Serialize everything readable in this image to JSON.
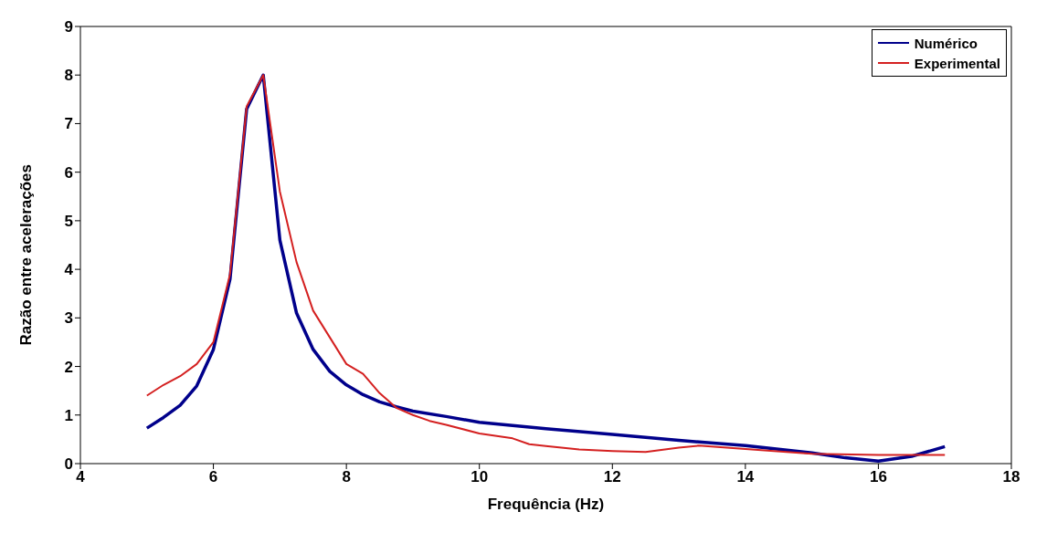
{
  "chart_data": {
    "type": "line",
    "xlabel": "Frequência (Hz)",
    "ylabel": "Razão entre acelerações",
    "xlim": [
      4,
      18
    ],
    "xticks": [
      4,
      6,
      8,
      10,
      12,
      14,
      16,
      18
    ],
    "ylim": [
      0,
      9
    ],
    "yticks": [
      0,
      1,
      2,
      3,
      4,
      5,
      6,
      7,
      8,
      9
    ],
    "grid": false,
    "legend": "top right",
    "marker": "none",
    "line_style": "solid",
    "series": [
      {
        "name": "Numérico",
        "color": "#00008b",
        "x": [
          5,
          5.25,
          5.5,
          5.75,
          6,
          6.25,
          6.5,
          6.75,
          7,
          7.25,
          7.5,
          7.75,
          8,
          8.25,
          8.5,
          8.75,
          9,
          9.5,
          10,
          11,
          12,
          13,
          14,
          15,
          15.5,
          16,
          16.5,
          17
        ],
        "values": [
          0.73,
          0.95,
          1.2,
          1.6,
          2.35,
          3.8,
          7.3,
          8.0,
          4.6,
          3.1,
          2.35,
          1.9,
          1.62,
          1.42,
          1.27,
          1.17,
          1.08,
          0.97,
          0.85,
          0.72,
          0.6,
          0.48,
          0.37,
          0.22,
          0.12,
          0.05,
          0.15,
          0.35
        ]
      },
      {
        "name": "Experimental",
        "color": "#d42020",
        "x": [
          5,
          5.25,
          5.5,
          5.75,
          6,
          6.25,
          6.5,
          6.75,
          7,
          7.25,
          7.5,
          7.75,
          8,
          8.25,
          8.5,
          8.75,
          9,
          9.25,
          9.5,
          10,
          10.5,
          10.75,
          11,
          11.5,
          12,
          12.5,
          13,
          13.3,
          14,
          15,
          16,
          17
        ],
        "values": [
          1.4,
          1.62,
          1.8,
          2.05,
          2.5,
          3.9,
          7.35,
          8.0,
          5.6,
          4.15,
          3.15,
          2.6,
          2.05,
          1.85,
          1.45,
          1.15,
          1.0,
          0.88,
          0.8,
          0.62,
          0.52,
          0.4,
          0.36,
          0.29,
          0.26,
          0.24,
          0.33,
          0.37,
          0.3,
          0.2,
          0.18,
          0.18
        ]
      }
    ]
  }
}
